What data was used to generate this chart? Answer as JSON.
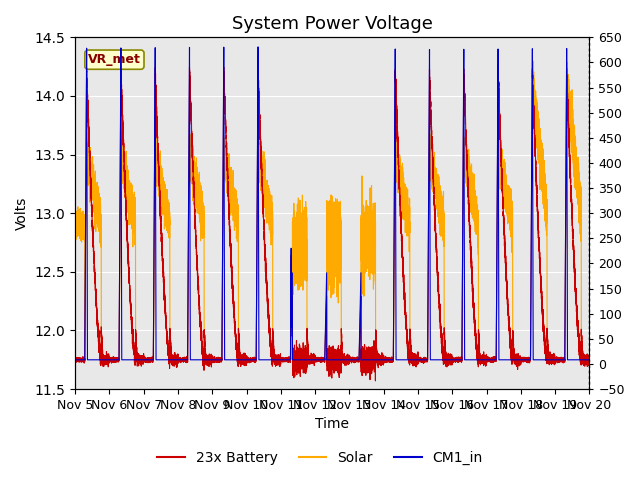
{
  "title": "System Power Voltage",
  "xlabel": "Time",
  "ylabel": "Volts",
  "ylim_left": [
    11.5,
    14.5
  ],
  "ylim_right": [
    -50,
    650
  ],
  "yticks_left": [
    11.5,
    12.0,
    12.5,
    13.0,
    13.5,
    14.0,
    14.5
  ],
  "yticks_right": [
    -50,
    0,
    50,
    100,
    150,
    200,
    250,
    300,
    350,
    400,
    450,
    500,
    550,
    600,
    650
  ],
  "xtick_labels": [
    "Nov 5",
    "Nov 6",
    "Nov 7",
    "Nov 8",
    "Nov 9",
    "Nov 10",
    "Nov 11",
    "Nov 12",
    "Nov 13",
    "Nov 14",
    "Nov 15",
    "Nov 16",
    "Nov 17",
    "Nov 18",
    "Nov 19",
    "Nov 20"
  ],
  "bg_color": "#e8e8e8",
  "fig_color": "#ffffff",
  "line_battery_color": "#cc0000",
  "line_solar_color": "#ffaa00",
  "line_cm1_color": "#0000cc",
  "vr_met_label": "VR_met",
  "legend_labels": [
    "23x Battery",
    "Solar",
    "CM1_in"
  ],
  "title_fontsize": 13,
  "axis_fontsize": 10,
  "tick_fontsize": 9,
  "legend_fontsize": 10
}
